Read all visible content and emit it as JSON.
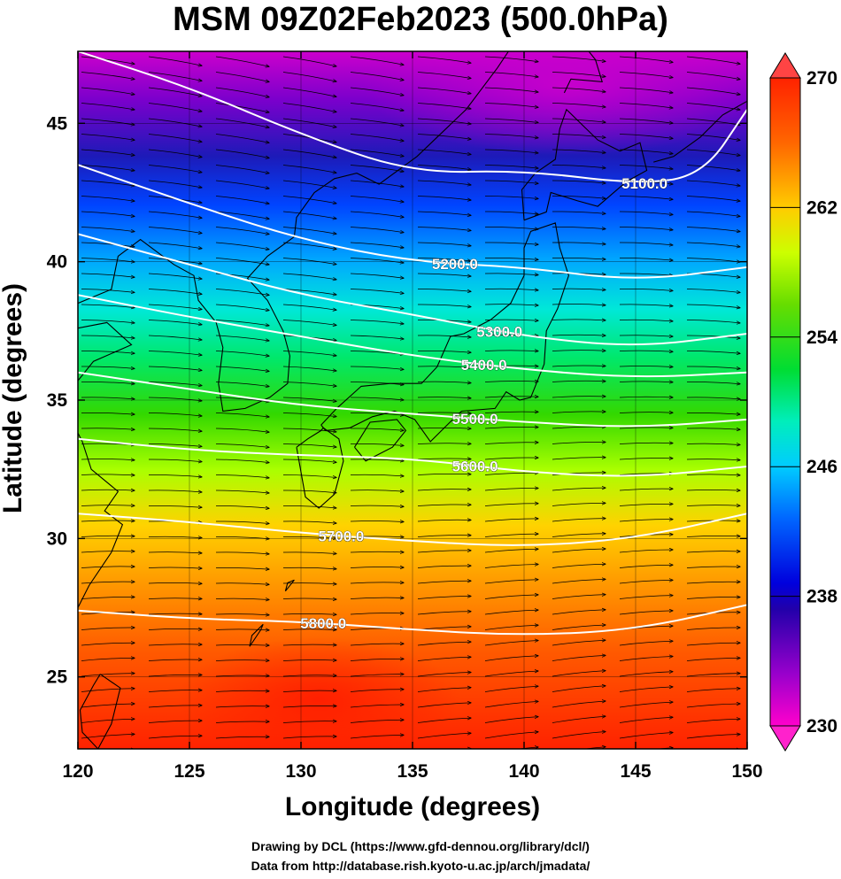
{
  "title": "MSM 09Z02Feb2023 (500.0hPa)",
  "xlabel": "Longitude (degrees)",
  "ylabel": "Latitude  (degrees)",
  "credit_line1": "Drawing by DCL (https://www.gfd-dennou.org/library/dcl/)",
  "credit_line2": "Data from http://database.rish.kyoto-u.ac.jp/arch/jmadata/",
  "map": {
    "lon_range": [
      120,
      150
    ],
    "lat_range": [
      22.4,
      47.6
    ],
    "x_ticks": [
      "120",
      "125",
      "130",
      "135",
      "140",
      "145",
      "150"
    ],
    "x_tick_values": [
      120,
      125,
      130,
      135,
      140,
      145,
      150
    ],
    "y_ticks": [
      "25",
      "30",
      "35",
      "40",
      "45"
    ],
    "y_tick_values": [
      25,
      30,
      35,
      40,
      45
    ],
    "colorbar_ticks": [
      "230",
      "238",
      "246",
      "254",
      "262",
      "270"
    ],
    "colorbar_values": [
      230,
      238,
      246,
      254,
      262,
      270
    ],
    "temperature_range": [
      230,
      270
    ],
    "contour_labels": [
      "5100.0",
      "5200.0",
      "5300.0",
      "5400.0",
      "5500.0",
      "5600.0",
      "5700.0",
      "5800.0"
    ],
    "contour_values": [
      5100,
      5200,
      5300,
      5400,
      5500,
      5600,
      5700,
      5800
    ],
    "contour_color": "#ffffff",
    "field_colors": [
      "#ff00cc",
      "#9900cc",
      "#0000cc",
      "#0044ff",
      "#00ccff",
      "#00ff66",
      "#33cc00",
      "#ccff00",
      "#ffcc00",
      "#ff6600",
      "#ff2200"
    ],
    "wind_arrows": "westerly streamlines",
    "land_outline_color": "#000000"
  }
}
